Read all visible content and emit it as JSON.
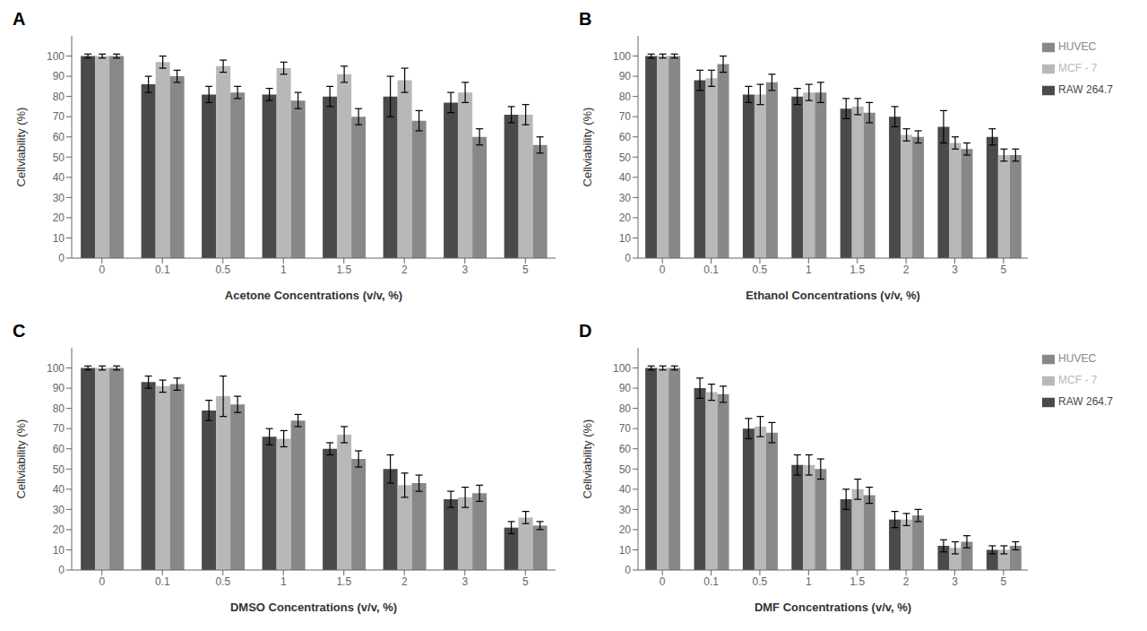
{
  "chart_data": [
    {
      "type": "bar",
      "title": "A",
      "xlabel": "Acetone Concentrations (v/v, %)",
      "ylabel": "Cellviability (%)",
      "categories": [
        "0",
        "0.1",
        "0.5",
        "1",
        "1.5",
        "2",
        "3",
        "5"
      ],
      "series": [
        {
          "name": "RAW 264.7",
          "color": "#4a4a4a",
          "values": [
            100,
            86,
            81,
            81,
            80,
            80,
            77,
            71
          ],
          "error": [
            1,
            4,
            4,
            3,
            5,
            10,
            5,
            4
          ]
        },
        {
          "name": "MCF - 7",
          "color": "#b8b8b8",
          "values": [
            100,
            97,
            95,
            94,
            91,
            88,
            82,
            71
          ],
          "error": [
            1,
            3,
            3,
            3,
            4,
            6,
            5,
            5
          ]
        },
        {
          "name": "HUVEC",
          "color": "#888888",
          "values": [
            100,
            90,
            82,
            78,
            70,
            68,
            60,
            56
          ],
          "error": [
            1,
            3,
            3,
            4,
            4,
            5,
            4,
            4
          ]
        }
      ],
      "ylim": [
        0,
        110
      ],
      "yticks": [
        0,
        10,
        20,
        30,
        40,
        50,
        60,
        70,
        80,
        90,
        100
      ],
      "grid": false
    },
    {
      "type": "bar",
      "title": "B",
      "xlabel": "Ethanol Concentrations (v/v, %)",
      "ylabel": "Cellviability (%)",
      "categories": [
        "0",
        "0.1",
        "0.5",
        "1",
        "1.5",
        "2",
        "3",
        "5"
      ],
      "series": [
        {
          "name": "RAW 264.7",
          "color": "#4a4a4a",
          "values": [
            100,
            88,
            81,
            80,
            74,
            70,
            65,
            60
          ],
          "error": [
            1,
            5,
            4,
            4,
            5,
            5,
            8,
            4
          ]
        },
        {
          "name": "MCF - 7",
          "color": "#b8b8b8",
          "values": [
            100,
            89,
            81,
            82,
            75,
            61,
            57,
            51
          ],
          "error": [
            1,
            4,
            5,
            4,
            4,
            3,
            3,
            3
          ]
        },
        {
          "name": "HUVEC",
          "color": "#888888",
          "values": [
            100,
            96,
            87,
            82,
            72,
            60,
            54,
            51
          ],
          "error": [
            1,
            4,
            4,
            5,
            5,
            3,
            3,
            3
          ]
        }
      ],
      "ylim": [
        0,
        110
      ],
      "yticks": [
        0,
        10,
        20,
        30,
        40,
        50,
        60,
        70,
        80,
        90,
        100
      ],
      "grid": false,
      "legend": "right"
    },
    {
      "type": "bar",
      "title": "C",
      "xlabel": "DMSO Concentrations (v/v, %)",
      "ylabel": "Cellviability (%)",
      "categories": [
        "0",
        "0.1",
        "0.5",
        "1",
        "1.5",
        "2",
        "3",
        "5"
      ],
      "series": [
        {
          "name": "RAW 264.7",
          "color": "#4a4a4a",
          "values": [
            100,
            93,
            79,
            66,
            60,
            50,
            35,
            21
          ],
          "error": [
            1,
            3,
            5,
            4,
            3,
            7,
            4,
            3
          ]
        },
        {
          "name": "MCF - 7",
          "color": "#b8b8b8",
          "values": [
            100,
            91,
            86,
            65,
            67,
            42,
            36,
            26
          ],
          "error": [
            1,
            3,
            10,
            4,
            4,
            6,
            5,
            3
          ]
        },
        {
          "name": "HUVEC",
          "color": "#888888",
          "values": [
            100,
            92,
            82,
            74,
            55,
            43,
            38,
            22
          ],
          "error": [
            1,
            3,
            4,
            3,
            4,
            4,
            4,
            2
          ]
        }
      ],
      "ylim": [
        0,
        110
      ],
      "yticks": [
        0,
        10,
        20,
        30,
        40,
        50,
        60,
        70,
        80,
        90,
        100
      ],
      "grid": false
    },
    {
      "type": "bar",
      "title": "D",
      "xlabel": "DMF Concentrations (v/v, %)",
      "ylabel": "Cellviability (%)",
      "categories": [
        "0",
        "0.1",
        "0.5",
        "1",
        "1.5",
        "2",
        "3",
        "5"
      ],
      "series": [
        {
          "name": "RAW 264.7",
          "color": "#4a4a4a",
          "values": [
            100,
            90,
            70,
            52,
            35,
            25,
            12,
            10
          ],
          "error": [
            1,
            5,
            5,
            5,
            5,
            4,
            3,
            2
          ]
        },
        {
          "name": "MCF - 7",
          "color": "#b8b8b8",
          "values": [
            100,
            88,
            71,
            52,
            40,
            25,
            11,
            10
          ],
          "error": [
            1,
            4,
            5,
            5,
            5,
            3,
            3,
            2
          ]
        },
        {
          "name": "HUVEC",
          "color": "#888888",
          "values": [
            100,
            87,
            68,
            50,
            37,
            27,
            14,
            12
          ],
          "error": [
            1,
            4,
            5,
            5,
            4,
            3,
            3,
            2
          ]
        }
      ],
      "ylim": [
        0,
        110
      ],
      "yticks": [
        0,
        10,
        20,
        30,
        40,
        50,
        60,
        70,
        80,
        90,
        100
      ],
      "grid": false,
      "legend": "right"
    }
  ]
}
